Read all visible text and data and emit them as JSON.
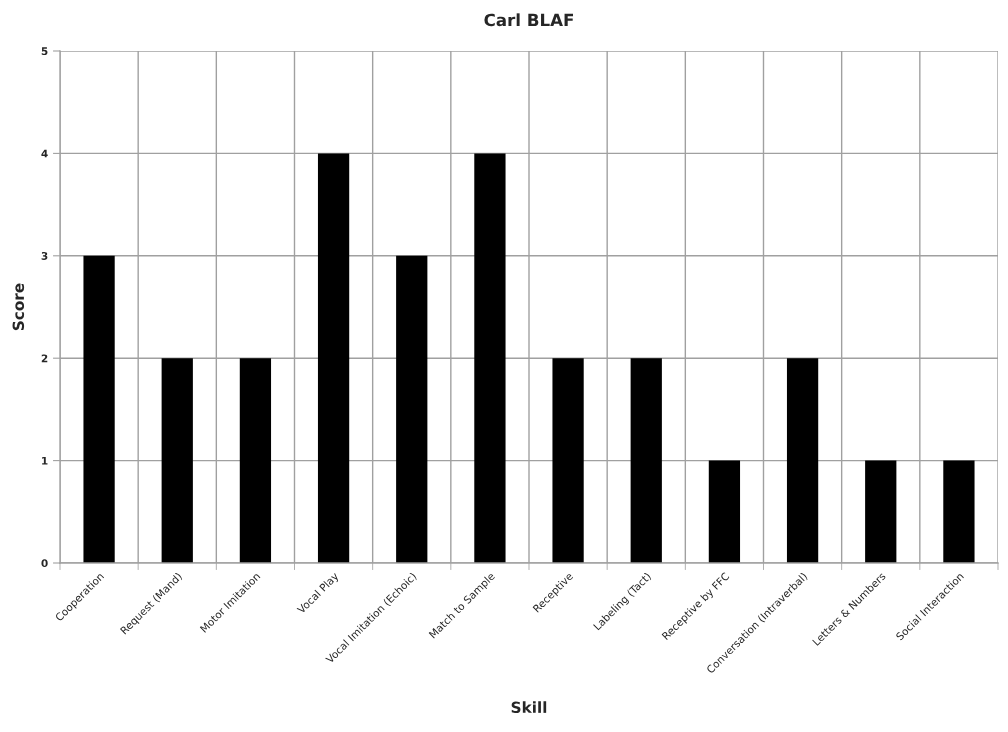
{
  "chart_data": {
    "type": "bar",
    "title": "Carl BLAF",
    "xlabel": "Skill",
    "ylabel": "Score",
    "categories": [
      "Cooperation",
      "Request (Mand)",
      "Motor Imitation",
      "Vocal Play",
      "Vocal Imitation (Echoic)",
      "Match to Sample",
      "Receptive",
      "Labeling (Tact)",
      "Receptive by FFC",
      "Conversation (Intraverbal)",
      "Letters & Numbers",
      "Social Interaction"
    ],
    "values": [
      3,
      2,
      2,
      4,
      3,
      4,
      2,
      2,
      1,
      2,
      1,
      1
    ],
    "color": "#000000",
    "ylim": [
      0,
      5
    ],
    "yticks": [
      0,
      1,
      2,
      3,
      4,
      5
    ],
    "grid": true
  }
}
